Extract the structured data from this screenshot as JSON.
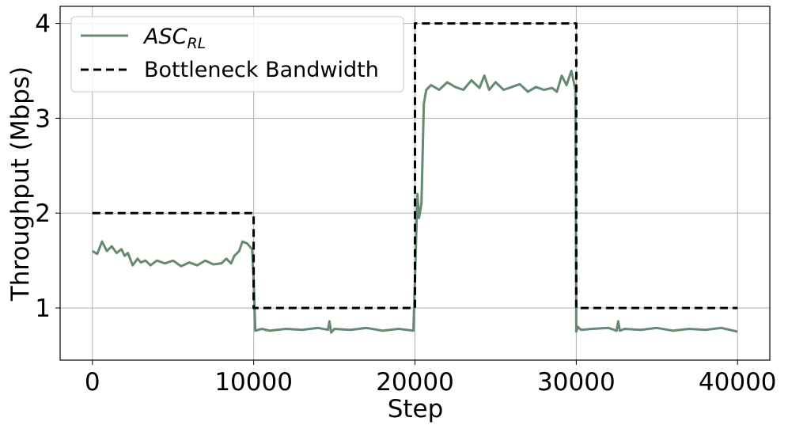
{
  "chart_data": {
    "type": "line",
    "xlabel": "Step",
    "ylabel": "Throughput (Mbps)",
    "xlim": [
      -2000,
      42000
    ],
    "ylim": [
      0.45,
      4.18
    ],
    "xticks": [
      0,
      10000,
      20000,
      30000,
      40000
    ],
    "xtick_labels": [
      "0",
      "10000",
      "20000",
      "30000",
      "40000"
    ],
    "yticks": [
      1,
      2,
      3,
      4
    ],
    "ytick_labels": [
      "1",
      "2",
      "3",
      "4"
    ],
    "grid": true,
    "legend_position": "top-left",
    "series": [
      {
        "name": "ASC",
        "name_subscript": "RL",
        "style": "solid",
        "color": "#668A70",
        "x": [
          0,
          300,
          600,
          900,
          1200,
          1500,
          1800,
          2000,
          2200,
          2500,
          2800,
          3000,
          3300,
          3600,
          4000,
          4500,
          5000,
          5500,
          6000,
          6500,
          7000,
          7500,
          8000,
          8300,
          8600,
          8800,
          9100,
          9300,
          9600,
          9900,
          10000,
          10100,
          10500,
          11000,
          12000,
          13000,
          14000,
          14600,
          14700,
          14800,
          15000,
          16000,
          17000,
          18000,
          19000,
          19500,
          19900,
          20000,
          20150,
          20250,
          20400,
          20550,
          20700,
          21000,
          21500,
          22000,
          22500,
          23000,
          23500,
          24000,
          24300,
          24600,
          25000,
          25500,
          26000,
          26500,
          27000,
          27500,
          28000,
          28500,
          28800,
          29100,
          29400,
          29700,
          29950,
          30000,
          30100,
          30300,
          31000,
          32000,
          32500,
          32600,
          32700,
          33000,
          34000,
          35000,
          36000,
          37000,
          38000,
          39000,
          40000
        ],
        "y": [
          1.6,
          1.57,
          1.7,
          1.6,
          1.65,
          1.58,
          1.62,
          1.55,
          1.58,
          1.45,
          1.52,
          1.48,
          1.5,
          1.45,
          1.5,
          1.47,
          1.5,
          1.44,
          1.48,
          1.45,
          1.5,
          1.46,
          1.47,
          1.52,
          1.47,
          1.55,
          1.6,
          1.7,
          1.68,
          1.62,
          1.3,
          0.76,
          0.78,
          0.76,
          0.78,
          0.77,
          0.79,
          0.77,
          0.86,
          0.74,
          0.78,
          0.77,
          0.79,
          0.76,
          0.78,
          0.77,
          0.76,
          1.3,
          2.2,
          1.95,
          2.1,
          3.15,
          3.3,
          3.35,
          3.3,
          3.38,
          3.33,
          3.3,
          3.4,
          3.32,
          3.45,
          3.3,
          3.38,
          3.3,
          3.33,
          3.36,
          3.28,
          3.33,
          3.3,
          3.32,
          3.28,
          3.45,
          3.35,
          3.5,
          3.3,
          0.75,
          0.8,
          0.77,
          0.78,
          0.79,
          0.76,
          0.86,
          0.76,
          0.78,
          0.77,
          0.79,
          0.76,
          0.78,
          0.77,
          0.79,
          0.75
        ]
      },
      {
        "name": "Bottleneck Bandwidth",
        "style": "dashed",
        "color": "#000000",
        "x": [
          0,
          10000,
          10000,
          20000,
          20000,
          30000,
          30000,
          40000
        ],
        "y": [
          2,
          2,
          1,
          1,
          4,
          4,
          1,
          1
        ]
      }
    ]
  }
}
